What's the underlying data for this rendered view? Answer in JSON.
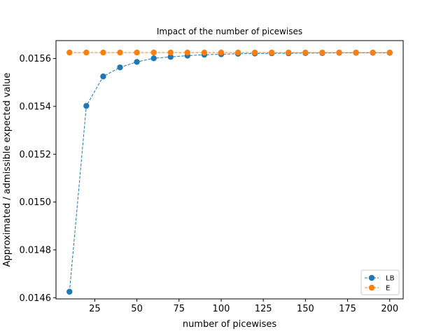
{
  "chart_data": {
    "type": "line",
    "title": "Impact of the number of picewises",
    "xlabel": "number of picewises",
    "ylabel": "Approximated / admissible expected value",
    "xlim": [
      2,
      208
    ],
    "ylim": [
      0.014595,
      0.015675
    ],
    "xticks": [
      25,
      50,
      75,
      100,
      125,
      150,
      175,
      200
    ],
    "xtick_labels": [
      "25",
      "50",
      "75",
      "100",
      "125",
      "150",
      "175",
      "200"
    ],
    "yticks": [
      0.0146,
      0.0148,
      0.015,
      0.0152,
      0.0154,
      0.0156
    ],
    "ytick_labels": [
      "0.0146",
      "0.0148",
      "0.0150",
      "0.0152",
      "0.0154",
      "0.0156"
    ],
    "grid": false,
    "legend_position": "lower-right",
    "x": [
      10,
      20,
      30,
      40,
      50,
      60,
      70,
      80,
      90,
      100,
      110,
      120,
      130,
      140,
      150,
      160,
      170,
      180,
      190,
      200
    ],
    "series": [
      {
        "name": "LB",
        "color": "#1f77b4",
        "values": [
          0.014625,
          0.015402,
          0.015525,
          0.015563,
          0.015586,
          0.015601,
          0.015607,
          0.015612,
          0.015616,
          0.015618,
          0.01562,
          0.015621,
          0.015622,
          0.015622,
          0.015623,
          0.015623,
          0.015624,
          0.015624,
          0.015624,
          0.015624
        ]
      },
      {
        "name": "E",
        "color": "#ff7f0e",
        "values": [
          0.015625,
          0.015625,
          0.015625,
          0.015625,
          0.015625,
          0.015625,
          0.015625,
          0.015625,
          0.015625,
          0.015625,
          0.015625,
          0.015625,
          0.015625,
          0.015625,
          0.015625,
          0.015625,
          0.015625,
          0.015625,
          0.015625,
          0.015625
        ]
      }
    ]
  }
}
